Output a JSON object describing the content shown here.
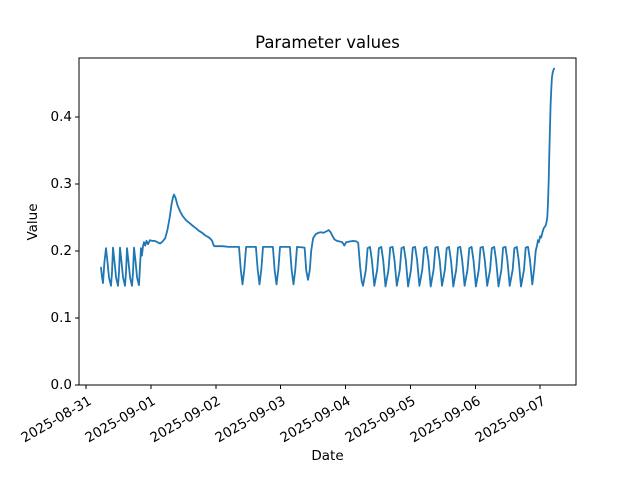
{
  "chart_data": {
    "type": "line",
    "title": "Parameter values",
    "xlabel": "Date",
    "ylabel": "Value",
    "line_color": "#1f77b4",
    "axis_color": "#000000",
    "grid": false,
    "legend": false,
    "x_unit": "days since 2025-08-31",
    "xlim_days": [
      -0.108,
      7.551
    ],
    "ylim": [
      0.0,
      0.4878
    ],
    "x_ticks": [
      {
        "d": 0,
        "label": "2025-08-31"
      },
      {
        "d": 1,
        "label": "2025-09-01"
      },
      {
        "d": 2,
        "label": "2025-09-02"
      },
      {
        "d": 3,
        "label": "2025-09-03"
      },
      {
        "d": 4,
        "label": "2025-09-04"
      },
      {
        "d": 5,
        "label": "2025-09-05"
      },
      {
        "d": 6,
        "label": "2025-09-06"
      },
      {
        "d": 7,
        "label": "2025-09-07"
      }
    ],
    "y_ticks": [
      {
        "v": 0.0,
        "label": "0.0"
      },
      {
        "v": 0.1,
        "label": "0.1"
      },
      {
        "v": 0.2,
        "label": "0.2"
      },
      {
        "v": 0.3,
        "label": "0.3"
      },
      {
        "v": 0.4,
        "label": "0.4"
      }
    ],
    "points": [
      [
        0.231,
        0.175
      ],
      [
        0.248,
        0.16
      ],
      [
        0.262,
        0.152
      ],
      [
        0.284,
        0.183
      ],
      [
        0.308,
        0.204
      ],
      [
        0.33,
        0.185
      ],
      [
        0.355,
        0.16
      ],
      [
        0.385,
        0.148
      ],
      [
        0.4,
        0.168
      ],
      [
        0.416,
        0.205
      ],
      [
        0.438,
        0.185
      ],
      [
        0.463,
        0.16
      ],
      [
        0.493,
        0.148
      ],
      [
        0.508,
        0.168
      ],
      [
        0.524,
        0.205
      ],
      [
        0.546,
        0.185
      ],
      [
        0.571,
        0.16
      ],
      [
        0.601,
        0.148
      ],
      [
        0.616,
        0.168
      ],
      [
        0.632,
        0.204
      ],
      [
        0.654,
        0.185
      ],
      [
        0.679,
        0.16
      ],
      [
        0.709,
        0.148
      ],
      [
        0.724,
        0.168
      ],
      [
        0.74,
        0.205
      ],
      [
        0.762,
        0.185
      ],
      [
        0.787,
        0.16
      ],
      [
        0.817,
        0.149
      ],
      [
        0.832,
        0.178
      ],
      [
        0.847,
        0.204
      ],
      [
        0.862,
        0.193
      ],
      [
        0.878,
        0.207
      ],
      [
        0.894,
        0.213
      ],
      [
        0.912,
        0.208
      ],
      [
        0.932,
        0.215
      ],
      [
        0.955,
        0.21
      ],
      [
        0.985,
        0.216
      ],
      [
        1.02,
        0.215
      ],
      [
        1.06,
        0.215
      ],
      [
        1.1,
        0.213
      ],
      [
        1.14,
        0.211
      ],
      [
        1.18,
        0.214
      ],
      [
        1.22,
        0.219
      ],
      [
        1.255,
        0.231
      ],
      [
        1.29,
        0.25
      ],
      [
        1.32,
        0.271
      ],
      [
        1.34,
        0.28
      ],
      [
        1.356,
        0.284
      ],
      [
        1.38,
        0.279
      ],
      [
        1.41,
        0.268
      ],
      [
        1.45,
        0.259
      ],
      [
        1.49,
        0.252
      ],
      [
        1.54,
        0.246
      ],
      [
        1.59,
        0.242
      ],
      [
        1.64,
        0.238
      ],
      [
        1.69,
        0.234
      ],
      [
        1.74,
        0.23
      ],
      [
        1.79,
        0.227
      ],
      [
        1.84,
        0.223
      ],
      [
        1.88,
        0.221
      ],
      [
        1.92,
        0.218
      ],
      [
        1.945,
        0.215
      ],
      [
        1.96,
        0.21
      ],
      [
        1.975,
        0.207
      ],
      [
        2.02,
        0.207
      ],
      [
        2.1,
        0.207
      ],
      [
        2.2,
        0.206
      ],
      [
        2.3,
        0.206
      ],
      [
        2.357,
        0.206
      ],
      [
        2.385,
        0.172
      ],
      [
        2.412,
        0.15
      ],
      [
        2.44,
        0.172
      ],
      [
        2.467,
        0.206
      ],
      [
        2.618,
        0.206
      ],
      [
        2.646,
        0.172
      ],
      [
        2.673,
        0.15
      ],
      [
        2.701,
        0.172
      ],
      [
        2.728,
        0.206
      ],
      [
        2.88,
        0.206
      ],
      [
        2.907,
        0.172
      ],
      [
        2.935,
        0.15
      ],
      [
        2.963,
        0.172
      ],
      [
        2.99,
        0.206
      ],
      [
        3.142,
        0.206
      ],
      [
        3.169,
        0.172
      ],
      [
        3.197,
        0.15
      ],
      [
        3.225,
        0.172
      ],
      [
        3.252,
        0.206
      ],
      [
        3.368,
        0.205
      ],
      [
        3.395,
        0.17
      ],
      [
        3.421,
        0.157
      ],
      [
        3.448,
        0.172
      ],
      [
        3.47,
        0.2
      ],
      [
        3.5,
        0.219
      ],
      [
        3.54,
        0.225
      ],
      [
        3.58,
        0.227
      ],
      [
        3.62,
        0.228
      ],
      [
        3.66,
        0.227
      ],
      [
        3.7,
        0.229
      ],
      [
        3.74,
        0.231
      ],
      [
        3.77,
        0.228
      ],
      [
        3.8,
        0.222
      ],
      [
        3.83,
        0.217
      ],
      [
        3.87,
        0.215
      ],
      [
        3.91,
        0.214
      ],
      [
        3.95,
        0.213
      ],
      [
        3.98,
        0.208
      ],
      [
        4.01,
        0.213
      ],
      [
        4.06,
        0.214
      ],
      [
        4.12,
        0.215
      ],
      [
        4.17,
        0.214
      ],
      [
        4.195,
        0.212
      ],
      [
        4.225,
        0.175
      ],
      [
        4.248,
        0.155
      ],
      [
        4.268,
        0.148
      ],
      [
        4.313,
        0.172
      ],
      [
        4.34,
        0.204
      ],
      [
        4.376,
        0.206
      ],
      [
        4.406,
        0.186
      ],
      [
        4.442,
        0.148
      ],
      [
        4.487,
        0.172
      ],
      [
        4.514,
        0.204
      ],
      [
        4.55,
        0.206
      ],
      [
        4.58,
        0.186
      ],
      [
        4.616,
        0.147
      ],
      [
        4.661,
        0.172
      ],
      [
        4.688,
        0.205
      ],
      [
        4.724,
        0.206
      ],
      [
        4.754,
        0.186
      ],
      [
        4.79,
        0.148
      ],
      [
        4.835,
        0.172
      ],
      [
        4.862,
        0.204
      ],
      [
        4.898,
        0.206
      ],
      [
        4.928,
        0.186
      ],
      [
        4.964,
        0.147
      ],
      [
        5.009,
        0.172
      ],
      [
        5.036,
        0.205
      ],
      [
        5.072,
        0.206
      ],
      [
        5.102,
        0.186
      ],
      [
        5.138,
        0.148
      ],
      [
        5.183,
        0.172
      ],
      [
        5.21,
        0.204
      ],
      [
        5.246,
        0.206
      ],
      [
        5.276,
        0.186
      ],
      [
        5.312,
        0.147
      ],
      [
        5.357,
        0.172
      ],
      [
        5.384,
        0.205
      ],
      [
        5.42,
        0.206
      ],
      [
        5.45,
        0.186
      ],
      [
        5.486,
        0.148
      ],
      [
        5.531,
        0.172
      ],
      [
        5.558,
        0.204
      ],
      [
        5.594,
        0.206
      ],
      [
        5.624,
        0.186
      ],
      [
        5.66,
        0.147
      ],
      [
        5.705,
        0.172
      ],
      [
        5.732,
        0.205
      ],
      [
        5.768,
        0.206
      ],
      [
        5.798,
        0.186
      ],
      [
        5.834,
        0.148
      ],
      [
        5.879,
        0.172
      ],
      [
        5.906,
        0.204
      ],
      [
        5.942,
        0.206
      ],
      [
        5.972,
        0.186
      ],
      [
        6.008,
        0.147
      ],
      [
        6.053,
        0.172
      ],
      [
        6.08,
        0.205
      ],
      [
        6.116,
        0.206
      ],
      [
        6.146,
        0.186
      ],
      [
        6.182,
        0.148
      ],
      [
        6.227,
        0.172
      ],
      [
        6.254,
        0.204
      ],
      [
        6.29,
        0.206
      ],
      [
        6.32,
        0.186
      ],
      [
        6.356,
        0.147
      ],
      [
        6.401,
        0.172
      ],
      [
        6.428,
        0.205
      ],
      [
        6.464,
        0.206
      ],
      [
        6.494,
        0.186
      ],
      [
        6.53,
        0.148
      ],
      [
        6.575,
        0.172
      ],
      [
        6.602,
        0.204
      ],
      [
        6.638,
        0.206
      ],
      [
        6.668,
        0.186
      ],
      [
        6.704,
        0.147
      ],
      [
        6.749,
        0.172
      ],
      [
        6.776,
        0.205
      ],
      [
        6.812,
        0.206
      ],
      [
        6.842,
        0.186
      ],
      [
        6.878,
        0.15
      ],
      [
        6.905,
        0.172
      ],
      [
        6.93,
        0.2
      ],
      [
        6.95,
        0.208
      ],
      [
        6.965,
        0.216
      ],
      [
        6.98,
        0.213
      ],
      [
        7.0,
        0.222
      ],
      [
        7.015,
        0.22
      ],
      [
        7.035,
        0.228
      ],
      [
        7.055,
        0.234
      ],
      [
        7.08,
        0.237
      ],
      [
        7.095,
        0.242
      ],
      [
        7.108,
        0.25
      ],
      [
        7.12,
        0.272
      ],
      [
        7.13,
        0.305
      ],
      [
        7.14,
        0.345
      ],
      [
        7.15,
        0.385
      ],
      [
        7.16,
        0.418
      ],
      [
        7.17,
        0.442
      ],
      [
        7.18,
        0.458
      ],
      [
        7.192,
        0.466
      ],
      [
        7.205,
        0.47
      ],
      [
        7.213,
        0.472
      ]
    ]
  }
}
